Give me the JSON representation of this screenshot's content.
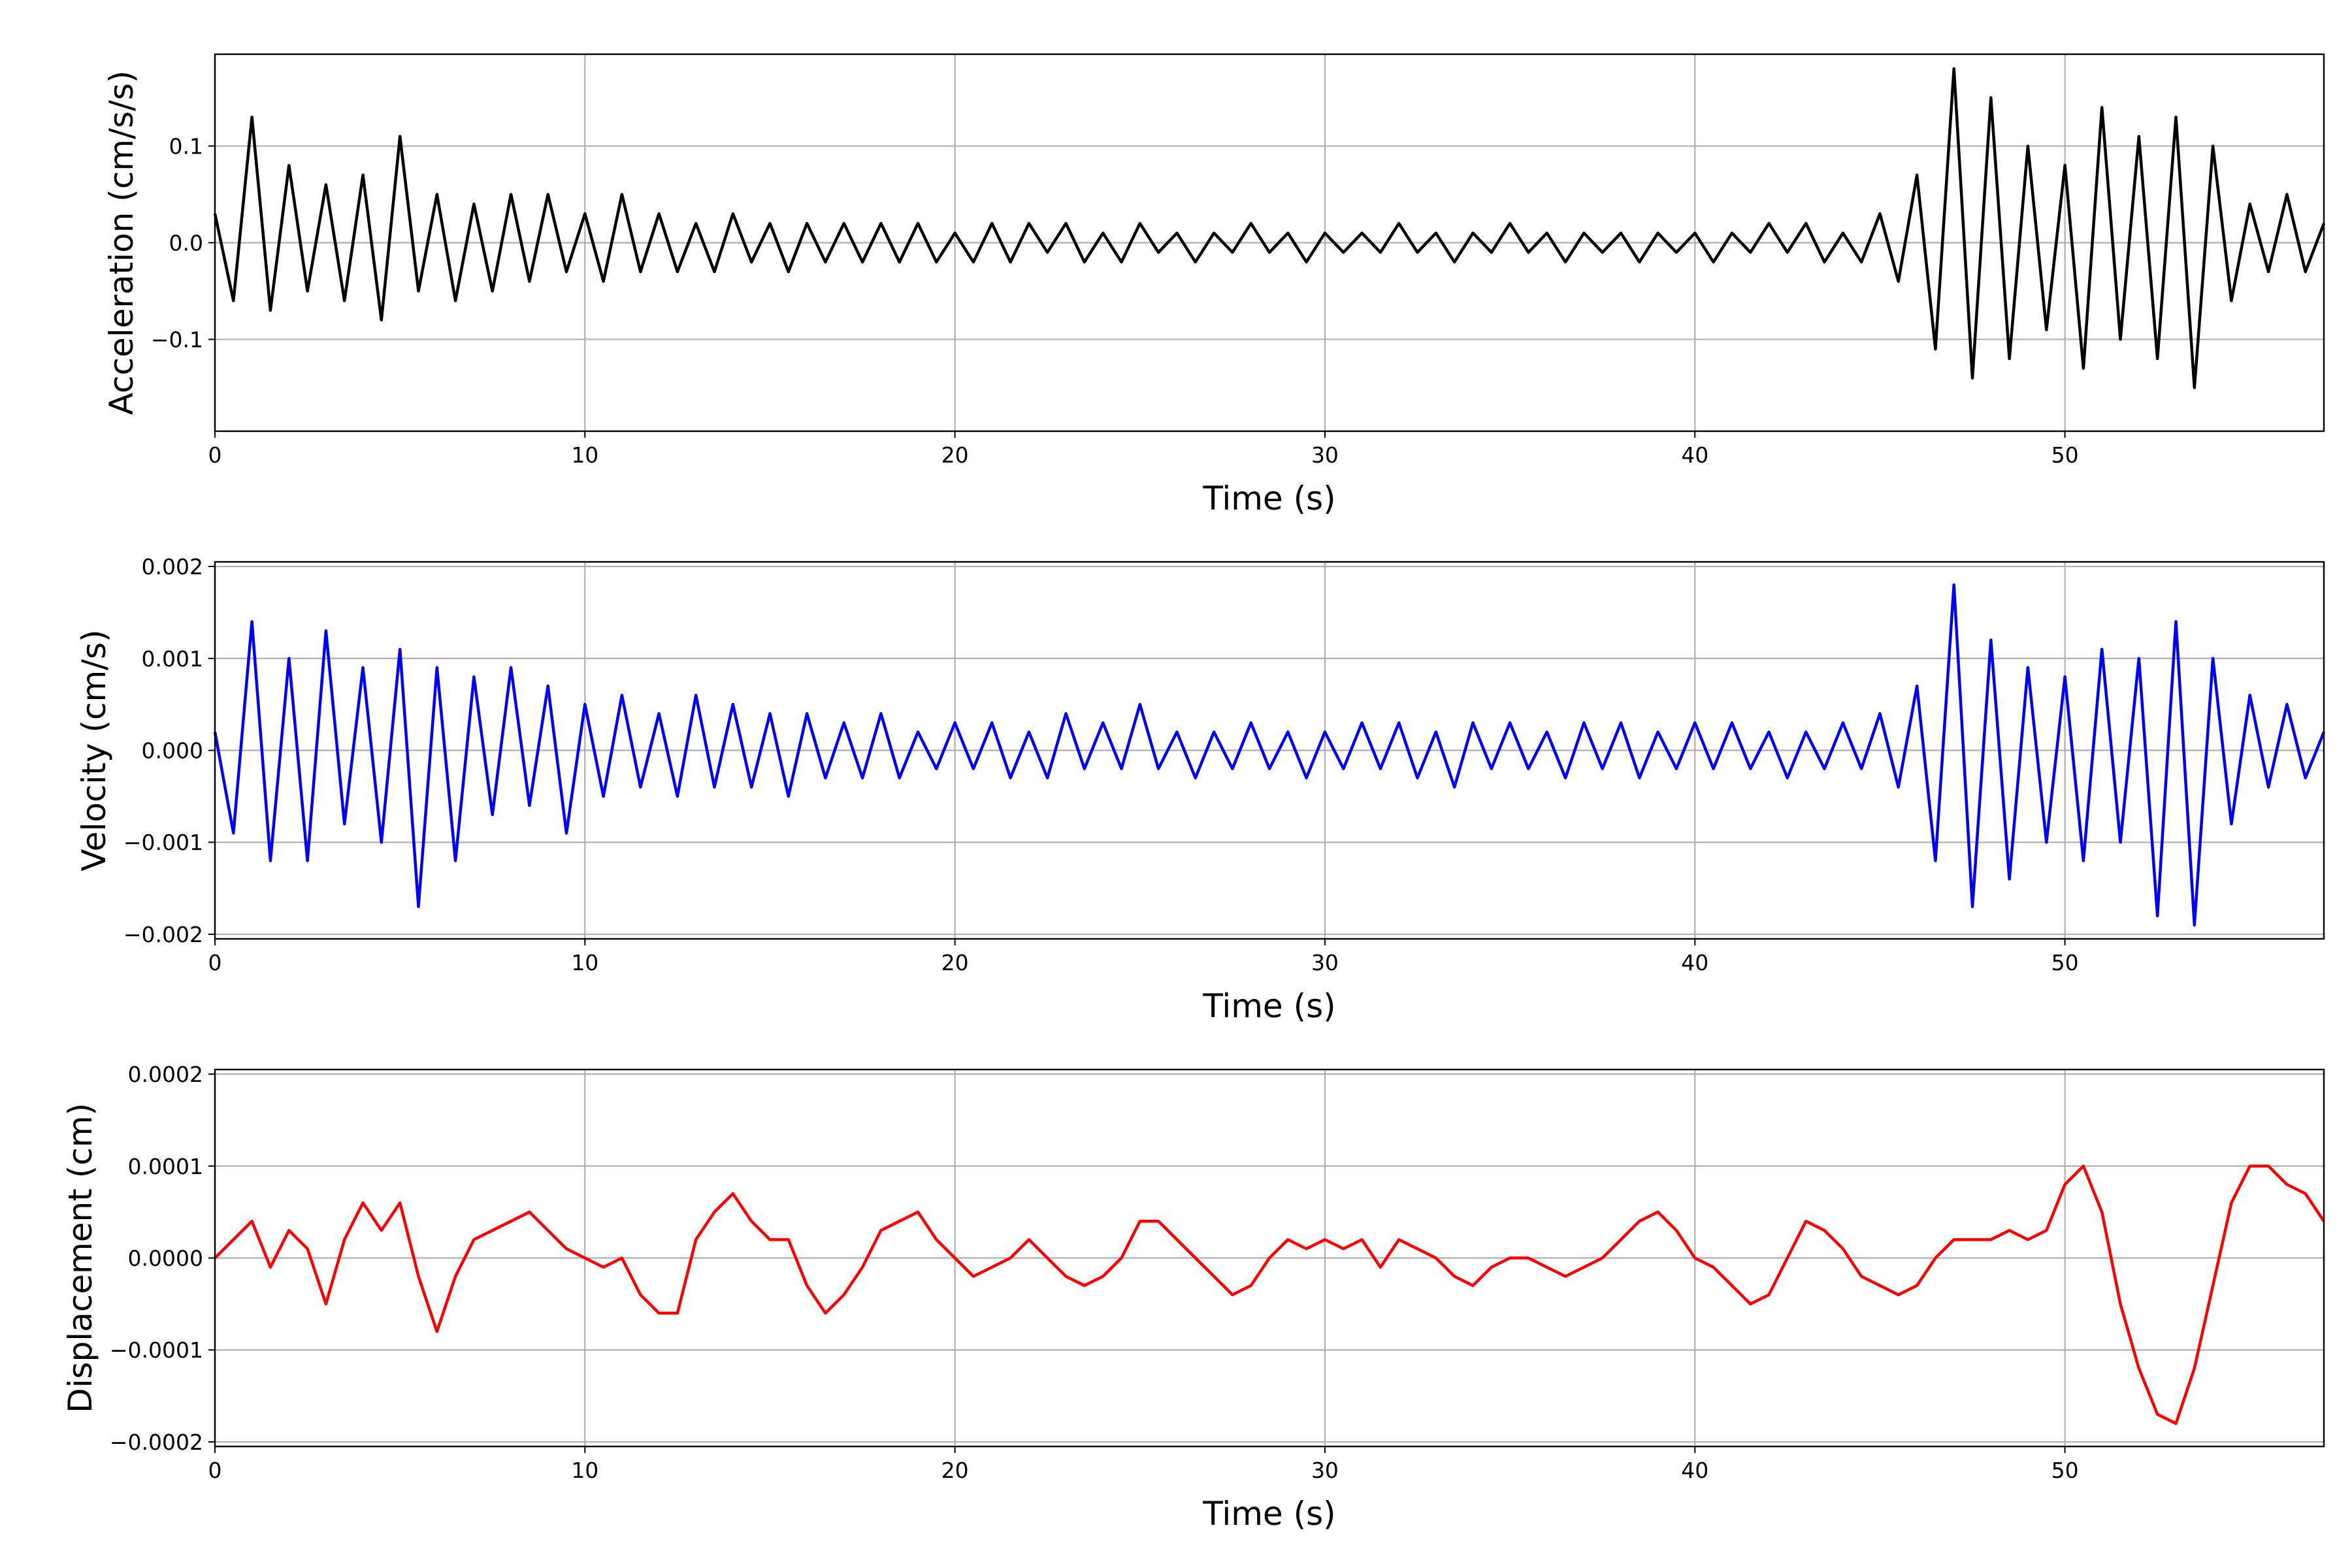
{
  "chart_data": [
    {
      "type": "line",
      "xlabel": "Time (s)",
      "ylabel": "Acceleration (cm/s/s)",
      "color": "#000000",
      "grid": true,
      "xlim": [
        0,
        57
      ],
      "xticks": [
        0,
        10,
        20,
        30,
        40,
        50
      ],
      "ylim": [
        -0.195,
        0.195
      ],
      "yticks": [
        {
          "value": -0.1,
          "label": "−0.1"
        },
        {
          "value": 0,
          "label": "0.0"
        },
        {
          "value": 0.1,
          "label": "0.1"
        }
      ],
      "x": [
        0,
        0.5,
        1,
        1.5,
        2,
        2.5,
        3,
        3.5,
        4,
        4.5,
        5,
        5.5,
        6,
        6.5,
        7,
        7.5,
        8,
        8.5,
        9,
        9.5,
        10,
        10.5,
        11,
        11.5,
        12,
        12.5,
        13,
        13.5,
        14,
        14.5,
        15,
        15.5,
        16,
        16.5,
        17,
        17.5,
        18,
        18.5,
        19,
        19.5,
        20,
        20.5,
        21,
        21.5,
        22,
        22.5,
        23,
        23.5,
        24,
        24.5,
        25,
        25.5,
        26,
        26.5,
        27,
        27.5,
        28,
        28.5,
        29,
        29.5,
        30,
        30.5,
        31,
        31.5,
        32,
        32.5,
        33,
        33.5,
        34,
        34.5,
        35,
        35.5,
        36,
        36.5,
        37,
        37.5,
        38,
        38.5,
        39,
        39.5,
        40,
        40.5,
        41,
        41.5,
        42,
        42.5,
        43,
        43.5,
        44,
        44.5,
        45,
        45.5,
        46,
        46.5,
        47,
        47.5,
        48,
        48.5,
        49,
        49.5,
        50,
        50.5,
        51,
        51.5,
        52,
        52.5,
        53,
        53.5,
        54,
        54.5,
        55,
        55.5,
        56,
        56.5,
        57
      ],
      "values": [
        0.03,
        -0.06,
        0.13,
        -0.07,
        0.08,
        -0.05,
        0.06,
        -0.06,
        0.07,
        -0.08,
        0.11,
        -0.05,
        0.05,
        -0.06,
        0.04,
        -0.05,
        0.05,
        -0.04,
        0.05,
        -0.03,
        0.03,
        -0.04,
        0.05,
        -0.03,
        0.03,
        -0.03,
        0.02,
        -0.03,
        0.03,
        -0.02,
        0.02,
        -0.03,
        0.02,
        -0.02,
        0.02,
        -0.02,
        0.02,
        -0.02,
        0.02,
        -0.02,
        0.01,
        -0.02,
        0.02,
        -0.02,
        0.02,
        -0.01,
        0.02,
        -0.02,
        0.01,
        -0.02,
        0.02,
        -0.01,
        0.01,
        -0.02,
        0.01,
        -0.01,
        0.02,
        -0.01,
        0.01,
        -0.02,
        0.01,
        -0.01,
        0.01,
        -0.01,
        0.02,
        -0.01,
        0.01,
        -0.02,
        0.01,
        -0.01,
        0.02,
        -0.01,
        0.01,
        -0.02,
        0.01,
        -0.01,
        0.01,
        -0.02,
        0.01,
        -0.01,
        0.01,
        -0.02,
        0.01,
        -0.01,
        0.02,
        -0.01,
        0.02,
        -0.02,
        0.01,
        -0.02,
        0.03,
        -0.04,
        0.07,
        -0.11,
        0.18,
        -0.14,
        0.15,
        -0.12,
        0.1,
        -0.09,
        0.08,
        -0.13,
        0.14,
        -0.1,
        0.11,
        -0.12,
        0.13,
        -0.15,
        0.1,
        -0.06,
        0.04,
        -0.03,
        0.05,
        -0.03,
        0.02
      ]
    },
    {
      "type": "line",
      "xlabel": "Time (s)",
      "ylabel": "Velocity (cm/s)",
      "color": "#0000ff",
      "grid": true,
      "xlim": [
        0,
        57
      ],
      "xticks": [
        0,
        10,
        20,
        30,
        40,
        50
      ],
      "ylim": [
        -0.00205,
        0.00205
      ],
      "yticks": [
        {
          "value": -0.002,
          "label": "−0.002"
        },
        {
          "value": -0.001,
          "label": "−0.001"
        },
        {
          "value": 0,
          "label": "0.000"
        },
        {
          "value": 0.001,
          "label": "0.001"
        },
        {
          "value": 0.002,
          "label": "0.002"
        }
      ],
      "x": [
        0,
        0.5,
        1,
        1.5,
        2,
        2.5,
        3,
        3.5,
        4,
        4.5,
        5,
        5.5,
        6,
        6.5,
        7,
        7.5,
        8,
        8.5,
        9,
        9.5,
        10,
        10.5,
        11,
        11.5,
        12,
        12.5,
        13,
        13.5,
        14,
        14.5,
        15,
        15.5,
        16,
        16.5,
        17,
        17.5,
        18,
        18.5,
        19,
        19.5,
        20,
        20.5,
        21,
        21.5,
        22,
        22.5,
        23,
        23.5,
        24,
        24.5,
        25,
        25.5,
        26,
        26.5,
        27,
        27.5,
        28,
        28.5,
        29,
        29.5,
        30,
        30.5,
        31,
        31.5,
        32,
        32.5,
        33,
        33.5,
        34,
        34.5,
        35,
        35.5,
        36,
        36.5,
        37,
        37.5,
        38,
        38.5,
        39,
        39.5,
        40,
        40.5,
        41,
        41.5,
        42,
        42.5,
        43,
        43.5,
        44,
        44.5,
        45,
        45.5,
        46,
        46.5,
        47,
        47.5,
        48,
        48.5,
        49,
        49.5,
        50,
        50.5,
        51,
        51.5,
        52,
        52.5,
        53,
        53.5,
        54,
        54.5,
        55,
        55.5,
        56,
        56.5,
        57
      ],
      "values": [
        0.0002,
        -0.0009,
        0.0014,
        -0.0012,
        0.001,
        -0.0012,
        0.0013,
        -0.0008,
        0.0009,
        -0.001,
        0.0011,
        -0.0017,
        0.0009,
        -0.0012,
        0.0008,
        -0.0007,
        0.0009,
        -0.0006,
        0.0007,
        -0.0009,
        0.0005,
        -0.0005,
        0.0006,
        -0.0004,
        0.0004,
        -0.0005,
        0.0006,
        -0.0004,
        0.0005,
        -0.0004,
        0.0004,
        -0.0005,
        0.0004,
        -0.0003,
        0.0003,
        -0.0003,
        0.0004,
        -0.0003,
        0.0002,
        -0.0002,
        0.0003,
        -0.0002,
        0.0003,
        -0.0003,
        0.0002,
        -0.0003,
        0.0004,
        -0.0002,
        0.0003,
        -0.0002,
        0.0005,
        -0.0002,
        0.0002,
        -0.0003,
        0.0002,
        -0.0002,
        0.0003,
        -0.0002,
        0.0002,
        -0.0003,
        0.0002,
        -0.0002,
        0.0003,
        -0.0002,
        0.0003,
        -0.0003,
        0.0002,
        -0.0004,
        0.0003,
        -0.0002,
        0.0003,
        -0.0002,
        0.0002,
        -0.0003,
        0.0003,
        -0.0002,
        0.0003,
        -0.0003,
        0.0002,
        -0.0002,
        0.0003,
        -0.0002,
        0.0003,
        -0.0002,
        0.0002,
        -0.0003,
        0.0002,
        -0.0002,
        0.0003,
        -0.0002,
        0.0004,
        -0.0004,
        0.0007,
        -0.0012,
        0.0018,
        -0.0017,
        0.0012,
        -0.0014,
        0.0009,
        -0.001,
        0.0008,
        -0.0012,
        0.0011,
        -0.001,
        0.001,
        -0.0018,
        0.0014,
        -0.0019,
        0.001,
        -0.0008,
        0.0006,
        -0.0004,
        0.0005,
        -0.0003,
        0.0002
      ]
    },
    {
      "type": "line",
      "xlabel": "Time (s)",
      "ylabel": "Displacement (cm)",
      "color": "#ff0000",
      "grid": true,
      "xlim": [
        0,
        57
      ],
      "xticks": [
        0,
        10,
        20,
        30,
        40,
        50
      ],
      "ylim": [
        -0.000205,
        0.000205
      ],
      "yticks": [
        {
          "value": -0.0002,
          "label": "−0.0002"
        },
        {
          "value": -0.0001,
          "label": "−0.0001"
        },
        {
          "value": 0,
          "label": "0.0000"
        },
        {
          "value": 0.0001,
          "label": "0.0001"
        },
        {
          "value": 0.0002,
          "label": "0.0002"
        }
      ],
      "x": [
        0,
        0.5,
        1,
        1.5,
        2,
        2.5,
        3,
        3.5,
        4,
        4.5,
        5,
        5.5,
        6,
        6.5,
        7,
        7.5,
        8,
        8.5,
        9,
        9.5,
        10,
        10.5,
        11,
        11.5,
        12,
        12.5,
        13,
        13.5,
        14,
        14.5,
        15,
        15.5,
        16,
        16.5,
        17,
        17.5,
        18,
        18.5,
        19,
        19.5,
        20,
        20.5,
        21,
        21.5,
        22,
        22.5,
        23,
        23.5,
        24,
        24.5,
        25,
        25.5,
        26,
        26.5,
        27,
        27.5,
        28,
        28.5,
        29,
        29.5,
        30,
        30.5,
        31,
        31.5,
        32,
        32.5,
        33,
        33.5,
        34,
        34.5,
        35,
        35.5,
        36,
        36.5,
        37,
        37.5,
        38,
        38.5,
        39,
        39.5,
        40,
        40.5,
        41,
        41.5,
        42,
        42.5,
        43,
        43.5,
        44,
        44.5,
        45,
        45.5,
        46,
        46.5,
        47,
        47.5,
        48,
        48.5,
        49,
        49.5,
        50,
        50.5,
        51,
        51.5,
        52,
        52.5,
        53,
        53.5,
        54,
        54.5,
        55,
        55.5,
        56,
        56.5,
        57
      ],
      "values": [
        0,
        2e-05,
        4e-05,
        -1e-05,
        3e-05,
        1e-05,
        -5e-05,
        2e-05,
        6e-05,
        3e-05,
        6e-05,
        -2e-05,
        -8e-05,
        -2e-05,
        2e-05,
        3e-05,
        4e-05,
        5e-05,
        3e-05,
        1e-05,
        0,
        -1e-05,
        0,
        -4e-05,
        -6e-05,
        -6e-05,
        2e-05,
        5e-05,
        7e-05,
        4e-05,
        2e-05,
        2e-05,
        -3e-05,
        -6e-05,
        -4e-05,
        -1e-05,
        3e-05,
        4e-05,
        5e-05,
        2e-05,
        0,
        -2e-05,
        -1e-05,
        0,
        2e-05,
        0,
        -2e-05,
        -3e-05,
        -2e-05,
        0,
        4e-05,
        4e-05,
        2e-05,
        0,
        -2e-05,
        -4e-05,
        -3e-05,
        0,
        2e-05,
        1e-05,
        2e-05,
        1e-05,
        2e-05,
        -1e-05,
        2e-05,
        1e-05,
        0,
        -2e-05,
        -3e-05,
        -1e-05,
        0,
        0,
        -1e-05,
        -2e-05,
        -1e-05,
        0,
        2e-05,
        4e-05,
        5e-05,
        3e-05,
        0,
        -1e-05,
        -3e-05,
        -5e-05,
        -4e-05,
        0,
        4e-05,
        3e-05,
        1e-05,
        -2e-05,
        -3e-05,
        -4e-05,
        -3e-05,
        0,
        2e-05,
        2e-05,
        2e-05,
        3e-05,
        2e-05,
        3e-05,
        8e-05,
        0.0001,
        5e-05,
        -5e-05,
        -0.00012,
        -0.00017,
        -0.00018,
        -0.00012,
        -3e-05,
        6e-05,
        0.0001,
        0.0001,
        8e-05,
        7e-05,
        4e-05
      ]
    }
  ]
}
